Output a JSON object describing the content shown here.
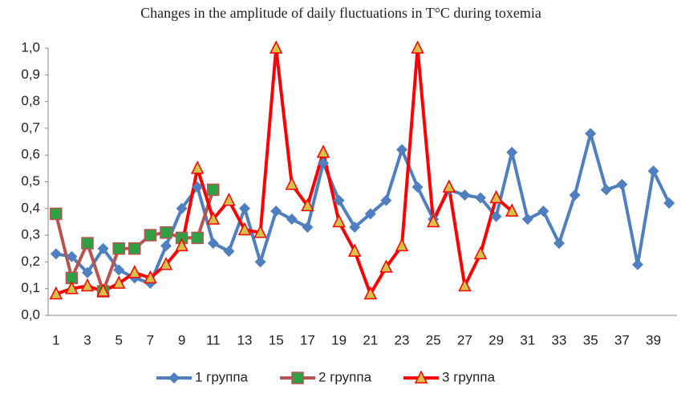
{
  "chart_data": {
    "type": "line",
    "title": "Changes in the amplitude of daily fluctuations in T°C during toxemia",
    "categories": [
      "1",
      null,
      "3",
      null,
      "5",
      null,
      "7",
      null,
      "9",
      null,
      "11",
      null,
      "13",
      null,
      "15",
      null,
      "17",
      null,
      "19",
      null,
      "21",
      null,
      "23",
      null,
      "25",
      null,
      "27",
      null,
      "29",
      null,
      "31",
      null,
      "33",
      null,
      "35",
      null,
      "37",
      null,
      "39",
      null
    ],
    "series": [
      {
        "name": "1 группа",
        "color": "#4f7fbf",
        "marker": "diamond",
        "marker_color": "#4f7fbf",
        "values": [
          0.23,
          0.22,
          0.16,
          0.25,
          0.17,
          0.14,
          0.12,
          0.26,
          0.4,
          0.48,
          0.27,
          0.24,
          0.4,
          0.2,
          0.39,
          0.36,
          0.33,
          0.57,
          0.43,
          0.33,
          0.38,
          0.43,
          0.62,
          0.48,
          0.36,
          0.47,
          0.45,
          0.44,
          0.37,
          0.61,
          0.36,
          0.39,
          0.27,
          0.45,
          0.68,
          0.47,
          0.49,
          0.19,
          0.54,
          0.42
        ]
      },
      {
        "name": "2 группа",
        "color": "#b85450",
        "marker": "square",
        "marker_color": "#2ea043",
        "values": [
          0.38,
          0.14,
          0.27,
          0.09,
          0.25,
          0.25,
          0.3,
          0.31,
          0.29,
          0.29,
          0.47,
          null,
          null,
          null,
          null,
          null,
          null,
          null,
          null,
          null,
          null,
          null,
          null,
          null,
          null,
          null,
          null,
          null,
          null,
          null,
          null,
          null,
          null,
          null,
          null,
          null,
          null,
          null,
          null,
          null
        ]
      },
      {
        "name": "3 группа",
        "color": "#ff0000",
        "marker": "triangle",
        "marker_color": "#d6c14a",
        "values": [
          0.08,
          0.1,
          0.11,
          0.09,
          0.12,
          0.16,
          0.14,
          0.19,
          0.26,
          0.55,
          0.36,
          0.43,
          0.32,
          0.31,
          1.0,
          0.49,
          0.41,
          0.61,
          0.35,
          0.24,
          0.08,
          0.18,
          0.26,
          1.0,
          0.35,
          0.48,
          0.11,
          0.23,
          0.44,
          0.39,
          null,
          null,
          null,
          null,
          null,
          null,
          null,
          null,
          null,
          null
        ]
      }
    ],
    "ylim": [
      0,
      1
    ],
    "yticks": [
      {
        "value": 0,
        "label": "0,0"
      },
      {
        "value": 0.1,
        "label": "0,1"
      },
      {
        "value": 0.2,
        "label": "0,2"
      },
      {
        "value": 0.3,
        "label": "0,3"
      },
      {
        "value": 0.4,
        "label": "0,4"
      },
      {
        "value": 0.5,
        "label": "0,5"
      },
      {
        "value": 0.6,
        "label": "0,6"
      },
      {
        "value": 0.7,
        "label": "0,7"
      },
      {
        "value": 0.8,
        "label": "0,8"
      },
      {
        "value": 0.9,
        "label": "0,9"
      },
      {
        "value": 1,
        "label": "1,0"
      }
    ],
    "grid": false,
    "legend": "bottom"
  }
}
